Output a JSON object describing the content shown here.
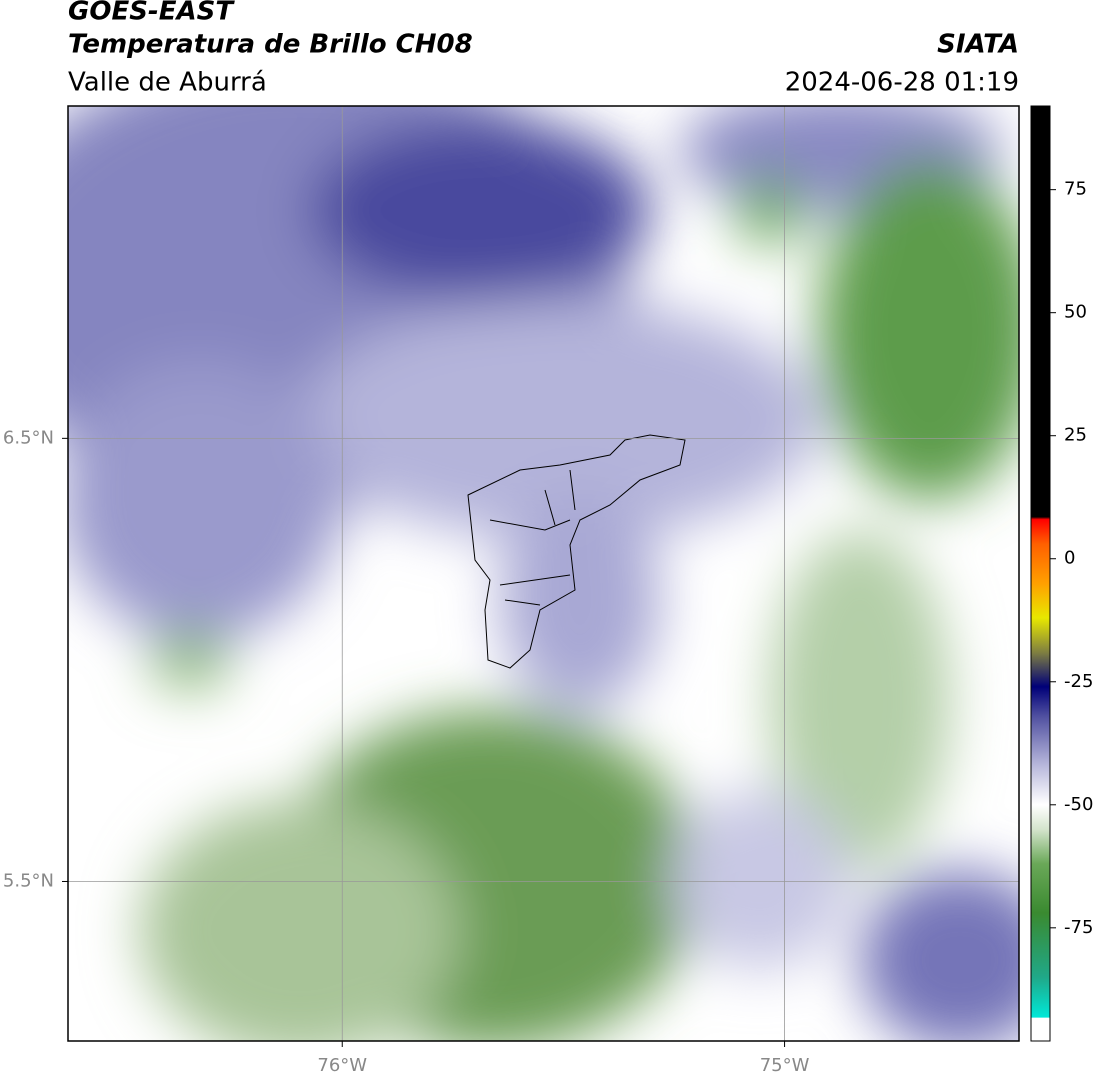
{
  "header": {
    "title": "GOES-EAST",
    "subtitle": "Temperatura de Brillo CH08",
    "region": "Valle de Aburrá",
    "source": "SIATA",
    "datetime": "2024-06-28 01:19"
  },
  "map": {
    "xlim": [
      -76.62,
      -74.47
    ],
    "ylim": [
      5.14,
      7.25
    ],
    "xticks": [
      {
        "value": -76,
        "label": "76°W"
      },
      {
        "value": -75,
        "label": "75°W"
      }
    ],
    "yticks": [
      {
        "value": 6.5,
        "label": "6.5°N"
      },
      {
        "value": 5.5,
        "label": "5.5°N"
      }
    ],
    "grid": true
  },
  "colorbar": {
    "lim": [
      -98,
      92
    ],
    "ticks": [
      75,
      50,
      25,
      0,
      -25,
      -50,
      -75
    ],
    "colormap": [
      {
        "value": -98,
        "color": "#ffffff"
      },
      {
        "value": -93.3,
        "color": "#ffffff"
      },
      {
        "value": -93.2,
        "color": "#00e8d8"
      },
      {
        "value": -85,
        "color": "#20a888"
      },
      {
        "value": -72,
        "color": "#3a8a30"
      },
      {
        "value": -62,
        "color": "#6aa858"
      },
      {
        "value": -55,
        "color": "#d4e4cc"
      },
      {
        "value": -50,
        "color": "#ffffff"
      },
      {
        "value": -42,
        "color": "#b8b8dc"
      },
      {
        "value": -32,
        "color": "#5050a0"
      },
      {
        "value": -26,
        "color": "#000078"
      },
      {
        "value": -19,
        "color": "#808040"
      },
      {
        "value": -12,
        "color": "#e8e800"
      },
      {
        "value": -5,
        "color": "#ffa000"
      },
      {
        "value": 3,
        "color": "#ff6000"
      },
      {
        "value": 8,
        "color": "#ff0000"
      },
      {
        "value": 8.5,
        "color": "#000000"
      },
      {
        "value": 92,
        "color": "#000000"
      }
    ]
  }
}
